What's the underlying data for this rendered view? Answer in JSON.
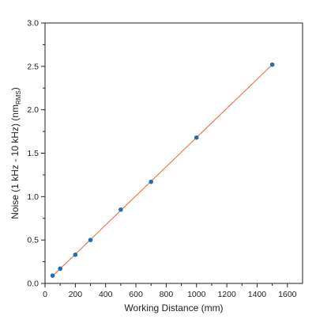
{
  "chart_data": {
    "type": "scatter",
    "title": "",
    "xlabel": "Working Distance (mm)",
    "ylabel": {
      "prefix": "Noise (1 kHz - 10 kHz) (nm",
      "subscript": "RMS",
      "suffix": ")"
    },
    "xlim": [
      0,
      1700
    ],
    "ylim": [
      0,
      3.0
    ],
    "xticks": [
      "0",
      "200",
      "400",
      "600",
      "800",
      "1000",
      "1200",
      "1400",
      "1600"
    ],
    "yticks": [
      "0.0",
      "0.5",
      "1.0",
      "1.5",
      "2.0",
      "2.5",
      "3.0"
    ],
    "grid": false,
    "legend": "none",
    "series": [
      {
        "marker_color": "#1f6fae",
        "x": [
          50,
          100,
          200,
          300,
          500,
          700,
          1000,
          1500
        ],
        "y": [
          0.09,
          0.17,
          0.33,
          0.5,
          0.85,
          1.17,
          1.68,
          2.52
        ]
      }
    ],
    "fit_line": {
      "color": "#e8704a",
      "x": [
        50,
        1500
      ],
      "y": [
        0.085,
        2.52
      ]
    }
  }
}
